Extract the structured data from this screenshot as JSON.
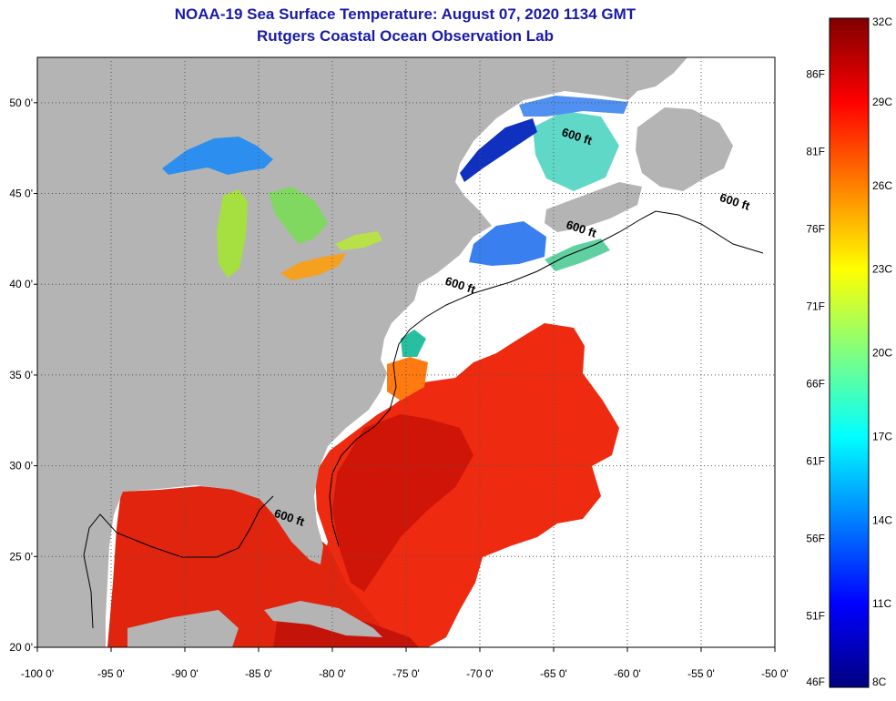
{
  "header": {
    "title": "NOAA-19 Sea Surface Temperature:  August 07, 2020 1134 GMT",
    "subtitle": "Rutgers Coastal Ocean Observation Lab"
  },
  "map": {
    "lon_range": [
      -100,
      -50
    ],
    "lat_range": [
      20,
      52.5
    ],
    "lon_ticks": [
      "-100 0'",
      "-95 0'",
      "-90 0'",
      "-85 0'",
      "-80 0'",
      "-75 0'",
      "-70 0'",
      "-65 0'",
      "-60 0'",
      "-55 0'",
      "-50 0'"
    ],
    "lat_ticks": [
      "20 0'",
      "25 0'",
      "30 0'",
      "35 0'",
      "40 0'",
      "45 0'",
      "50 0'"
    ],
    "land_color": "#b4b4b4",
    "ocean_nodata_color": "#ffffff",
    "contour_labels": [
      {
        "text": "600 ft",
        "lon": -64.5,
        "lat": 48.2
      },
      {
        "text": "600 ft",
        "lon": -53.8,
        "lat": 44.6
      },
      {
        "text": "600 ft",
        "lon": -64.2,
        "lat": 43.1
      },
      {
        "text": "600 ft",
        "lon": -72.4,
        "lat": 40.0
      },
      {
        "text": "600 ft",
        "lon": -84.0,
        "lat": 27.2
      }
    ]
  },
  "colorbar": {
    "colors": [
      "#00007f",
      "#0000ff",
      "#0080ff",
      "#00ffff",
      "#80ff80",
      "#ffff00",
      "#ff8000",
      "#ff0000",
      "#7f0000"
    ],
    "celsius_labels": [
      "8C",
      "11C",
      "14C",
      "17C",
      "20C",
      "23C",
      "26C",
      "29C",
      "32C"
    ],
    "fahrenheit_labels": [
      "46F",
      "51F",
      "56F",
      "61F",
      "66F",
      "71F",
      "76F",
      "81F",
      "86F"
    ],
    "celsius_values": [
      8,
      11,
      14,
      17,
      20,
      23,
      26,
      29,
      32
    ],
    "fahrenheit_values": [
      46,
      51,
      56,
      61,
      66,
      71,
      76,
      81,
      86
    ]
  }
}
